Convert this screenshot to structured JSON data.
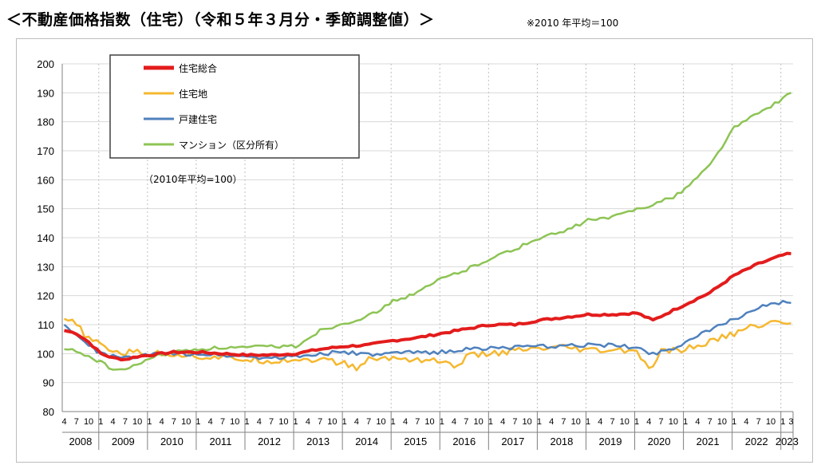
{
  "title": "＜不動産価格指数（住宅）（令和５年３月分・季節調整値）＞",
  "note": "※2010 年平均＝100",
  "chart_data": {
    "type": "line",
    "annotation": "（2010年平均=100）",
    "ylim": [
      80,
      200
    ],
    "yticks": [
      80,
      90,
      100,
      110,
      120,
      130,
      140,
      150,
      160,
      170,
      180,
      190,
      200
    ],
    "x_range": [
      "2008-04",
      "2023-03"
    ],
    "years": [
      "2008",
      "2009",
      "2010",
      "2011",
      "2012",
      "2013",
      "2014",
      "2015",
      "2016",
      "2017",
      "2018",
      "2019",
      "2020",
      "2021",
      "2022",
      "2023"
    ],
    "month_ticks": [
      "4",
      "7",
      "10",
      "1"
    ],
    "last_month_tick": "3",
    "grid": true,
    "legend_position": "top-left",
    "series": [
      {
        "name": "住宅総合",
        "color": "#e31c1c",
        "points": [
          [
            "2008-04",
            108
          ],
          [
            "2008-07",
            107
          ],
          [
            "2008-10",
            104
          ],
          [
            "2009-01",
            100
          ],
          [
            "2009-04",
            98.5
          ],
          [
            "2009-07",
            98
          ],
          [
            "2009-10",
            99
          ],
          [
            "2010-01",
            99.5
          ],
          [
            "2010-07",
            100.5
          ],
          [
            "2011-01",
            100.5
          ],
          [
            "2011-07",
            100
          ],
          [
            "2012-01",
            99.5
          ],
          [
            "2012-07",
            99.5
          ],
          [
            "2013-01",
            100
          ],
          [
            "2013-07",
            101.5
          ],
          [
            "2014-01",
            102.5
          ],
          [
            "2014-07",
            103
          ],
          [
            "2015-01",
            104.5
          ],
          [
            "2015-07",
            105.5
          ],
          [
            "2016-01",
            107
          ],
          [
            "2016-07",
            108.5
          ],
          [
            "2017-01",
            110
          ],
          [
            "2017-07",
            110
          ],
          [
            "2018-01",
            111.5
          ],
          [
            "2018-07",
            112.5
          ],
          [
            "2019-01",
            113.5
          ],
          [
            "2019-07",
            113.5
          ],
          [
            "2020-01",
            114
          ],
          [
            "2020-05",
            111.5
          ],
          [
            "2020-10",
            115
          ],
          [
            "2021-01",
            117
          ],
          [
            "2021-07",
            121
          ],
          [
            "2022-01",
            127
          ],
          [
            "2022-07",
            131
          ],
          [
            "2023-01",
            134
          ],
          [
            "2023-03",
            134.5
          ]
        ]
      },
      {
        "name": "住宅地",
        "color": "#f5b830",
        "points": [
          [
            "2008-04",
            112
          ],
          [
            "2008-07",
            110
          ],
          [
            "2008-10",
            105
          ],
          [
            "2009-01",
            103
          ],
          [
            "2009-04",
            101
          ],
          [
            "2009-07",
            100
          ],
          [
            "2009-10",
            101
          ],
          [
            "2010-01",
            100
          ],
          [
            "2010-07",
            100
          ],
          [
            "2011-01",
            99
          ],
          [
            "2011-07",
            98.5
          ],
          [
            "2012-01",
            98
          ],
          [
            "2012-07",
            97.5
          ],
          [
            "2013-01",
            98
          ],
          [
            "2013-07",
            98
          ],
          [
            "2014-01",
            96.5
          ],
          [
            "2014-04",
            95
          ],
          [
            "2014-07",
            98
          ],
          [
            "2015-01",
            98.5
          ],
          [
            "2015-07",
            98
          ],
          [
            "2016-01",
            97.5
          ],
          [
            "2016-04",
            95
          ],
          [
            "2016-07",
            99
          ],
          [
            "2017-01",
            100
          ],
          [
            "2017-07",
            101
          ],
          [
            "2018-01",
            101.5
          ],
          [
            "2018-07",
            102
          ],
          [
            "2019-01",
            101
          ],
          [
            "2019-07",
            101
          ],
          [
            "2020-01",
            101
          ],
          [
            "2020-04",
            94
          ],
          [
            "2020-07",
            100.5
          ],
          [
            "2021-01",
            101.5
          ],
          [
            "2021-07",
            104
          ],
          [
            "2022-01",
            107
          ],
          [
            "2022-07",
            110
          ],
          [
            "2023-01",
            111
          ],
          [
            "2023-03",
            110.5
          ]
        ]
      },
      {
        "name": "戸建住宅",
        "color": "#4f81bd",
        "points": [
          [
            "2008-04",
            110
          ],
          [
            "2008-07",
            106
          ],
          [
            "2008-10",
            103
          ],
          [
            "2009-01",
            100
          ],
          [
            "2009-04",
            99
          ],
          [
            "2009-07",
            98.5
          ],
          [
            "2009-10",
            99
          ],
          [
            "2010-01",
            99.5
          ],
          [
            "2010-07",
            100
          ],
          [
            "2011-01",
            100
          ],
          [
            "2011-07",
            99.5
          ],
          [
            "2012-01",
            99
          ],
          [
            "2012-07",
            98.5
          ],
          [
            "2013-01",
            99
          ],
          [
            "2013-07",
            100
          ],
          [
            "2014-01",
            100.5
          ],
          [
            "2014-07",
            99.5
          ],
          [
            "2015-01",
            100
          ],
          [
            "2015-07",
            100.5
          ],
          [
            "2016-01",
            100.5
          ],
          [
            "2016-07",
            101.5
          ],
          [
            "2017-01",
            102
          ],
          [
            "2017-07",
            102
          ],
          [
            "2018-01",
            102.5
          ],
          [
            "2018-07",
            102.5
          ],
          [
            "2019-01",
            103
          ],
          [
            "2019-07",
            103
          ],
          [
            "2020-01",
            102
          ],
          [
            "2020-05",
            100
          ],
          [
            "2020-10",
            102
          ],
          [
            "2021-01",
            104
          ],
          [
            "2021-07",
            108
          ],
          [
            "2022-01",
            112
          ],
          [
            "2022-07",
            116
          ],
          [
            "2023-01",
            117.5
          ],
          [
            "2023-03",
            117.5
          ]
        ]
      },
      {
        "name": "マンション（区分所有）",
        "color": "#8dc454",
        "points": [
          [
            "2008-04",
            101.5
          ],
          [
            "2008-07",
            101
          ],
          [
            "2008-10",
            99
          ],
          [
            "2009-01",
            97
          ],
          [
            "2009-04",
            94.5
          ],
          [
            "2009-07",
            94.5
          ],
          [
            "2009-10",
            96
          ],
          [
            "2010-01",
            98.5
          ],
          [
            "2010-07",
            100.5
          ],
          [
            "2011-01",
            101.5
          ],
          [
            "2011-07",
            102
          ],
          [
            "2012-01",
            102
          ],
          [
            "2012-07",
            102.5
          ],
          [
            "2013-01",
            102.5
          ],
          [
            "2013-07",
            108
          ],
          [
            "2014-01",
            110.5
          ],
          [
            "2014-07",
            113
          ],
          [
            "2015-01",
            118
          ],
          [
            "2015-07",
            121
          ],
          [
            "2016-01",
            126
          ],
          [
            "2016-07",
            129
          ],
          [
            "2017-01",
            133
          ],
          [
            "2017-07",
            136
          ],
          [
            "2018-01",
            140
          ],
          [
            "2018-07",
            142
          ],
          [
            "2019-01",
            146
          ],
          [
            "2019-07",
            147
          ],
          [
            "2020-01",
            150
          ],
          [
            "2020-05",
            151.5
          ],
          [
            "2020-10",
            154
          ],
          [
            "2021-01",
            157
          ],
          [
            "2021-07",
            165
          ],
          [
            "2022-01",
            178
          ],
          [
            "2022-07",
            183
          ],
          [
            "2023-01",
            188
          ],
          [
            "2023-03",
            190
          ]
        ]
      }
    ]
  }
}
